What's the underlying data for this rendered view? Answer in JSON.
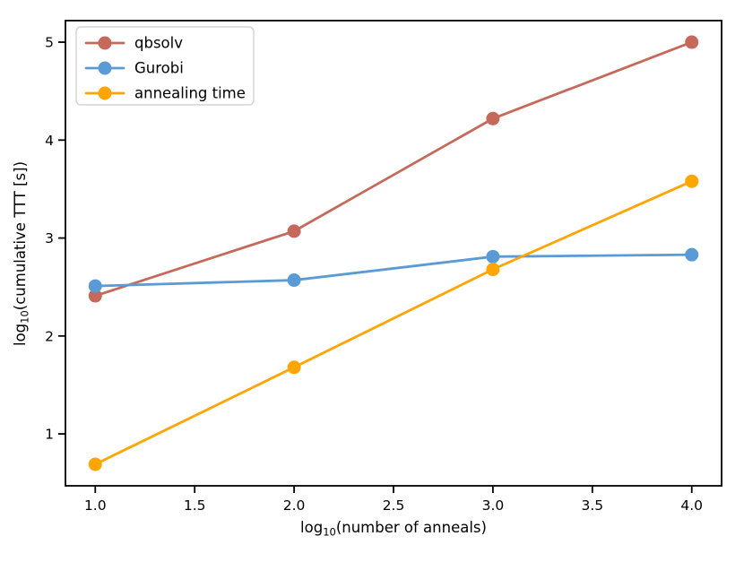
{
  "figure": {
    "background": "#ffffff",
    "axis_color": "#000000"
  },
  "chart_data": {
    "type": "line",
    "title": "",
    "xlabel": {
      "pre": "log",
      "sub": "10",
      "post": "(number of anneals)"
    },
    "ylabel": {
      "pre": "log",
      "sub": "10",
      "post": "(cumulative TTT [s])"
    },
    "x": [
      1.0,
      2.0,
      3.0,
      4.0
    ],
    "series": [
      {
        "name": "qbsolv",
        "color": "#c5695a",
        "values": [
          2.41,
          3.07,
          4.22,
          5.0
        ]
      },
      {
        "name": "Gurobi",
        "color": "#5b9bd5",
        "values": [
          2.51,
          2.57,
          2.81,
          2.83
        ]
      },
      {
        "name": "annealing time",
        "color": "#ffa502",
        "values": [
          0.69,
          1.68,
          2.68,
          3.58
        ]
      }
    ],
    "xticks": {
      "values": [
        1.0,
        1.5,
        2.0,
        2.5,
        3.0,
        3.5,
        4.0
      ],
      "labels": [
        "1.0",
        "1.5",
        "2.0",
        "2.5",
        "3.0",
        "3.5",
        "4.0"
      ]
    },
    "yticks": {
      "values": [
        1,
        2,
        3,
        4,
        5
      ],
      "labels": [
        "1",
        "2",
        "3",
        "4",
        "5"
      ]
    },
    "xlim": [
      0.85,
      4.15
    ],
    "ylim": [
      0.47,
      5.22
    ],
    "grid": false,
    "marker": "circle",
    "legend": {
      "position": "upper left",
      "entries": [
        "qbsolv",
        "Gurobi",
        "annealing time"
      ],
      "border_color": "#cccccc",
      "fill": "#ffffff"
    }
  }
}
